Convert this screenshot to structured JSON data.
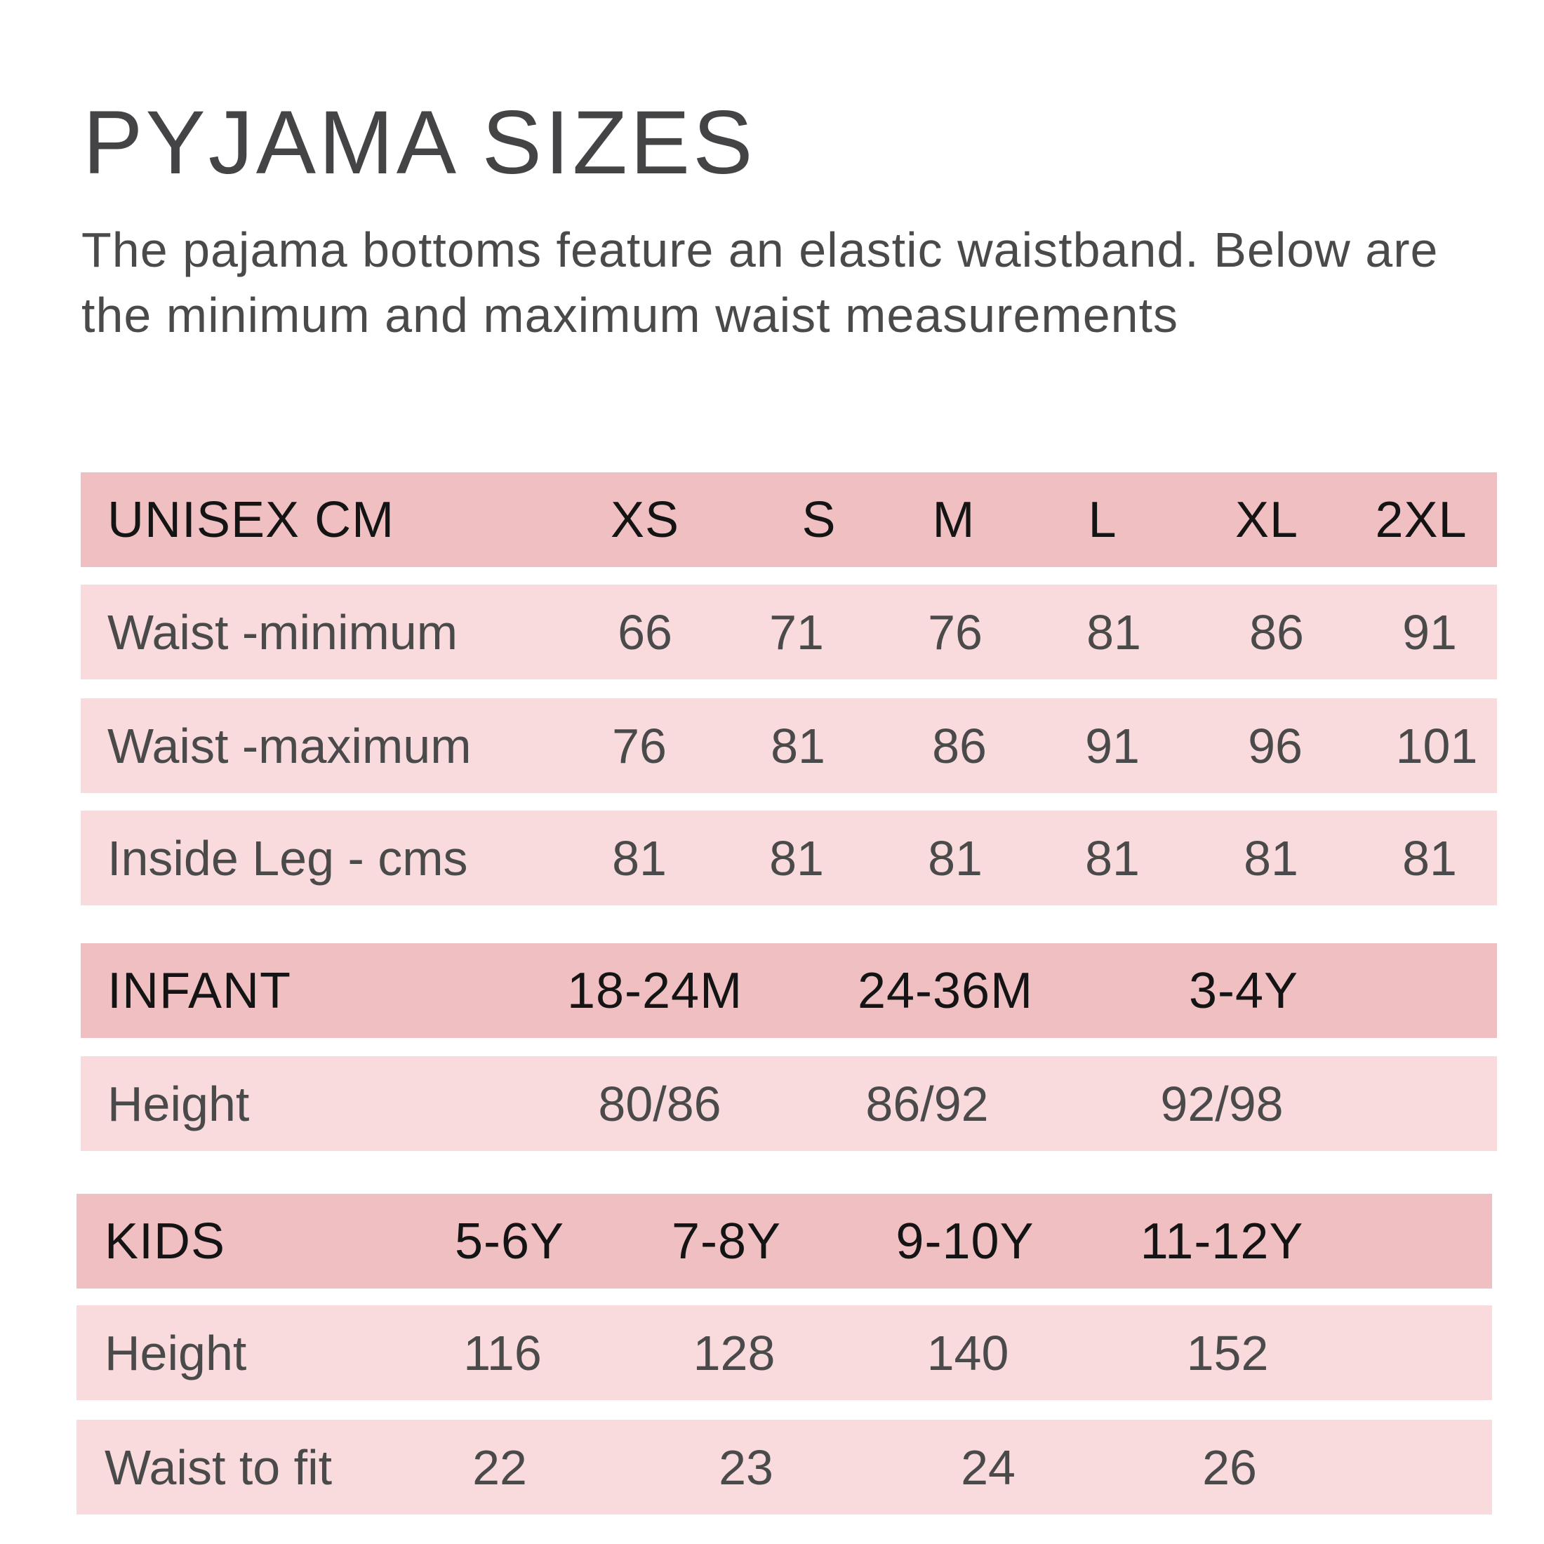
{
  "title": "PYJAMA SIZES",
  "subtitle": "The pajama bottoms feature an elastic waistband. Below are the minimum and maximum waist measurements",
  "colors": {
    "header_bg": "#efbfc2",
    "row_bg": "#f9dadd",
    "header_text": "#141414",
    "row_text": "#4a4a4a"
  },
  "unisex": {
    "header": {
      "label": "UNISEX CM",
      "sizes": [
        "XS",
        "S",
        "M",
        "L",
        "XL",
        "2XL"
      ]
    },
    "rows": [
      {
        "label": "Waist -minimum",
        "values": [
          "66",
          "71",
          "76",
          "81",
          "86",
          "91"
        ]
      },
      {
        "label": "Waist -maximum",
        "values": [
          "76",
          "81",
          "86",
          "91",
          "96",
          "101"
        ]
      },
      {
        "label": "Inside Leg - cms",
        "values": [
          "81",
          "81",
          "81",
          "81",
          "81",
          "81"
        ]
      }
    ]
  },
  "infant": {
    "header": {
      "label": "INFANT",
      "sizes": [
        "18-24M",
        "24-36M",
        "3-4Y"
      ]
    },
    "rows": [
      {
        "label": "Height",
        "values": [
          "80/86",
          "86/92",
          "92/98"
        ]
      }
    ]
  },
  "kids": {
    "header": {
      "label": "KIDS",
      "sizes": [
        "5-6Y",
        "7-8Y",
        "9-10Y",
        "11-12Y"
      ]
    },
    "rows": [
      {
        "label": "Height",
        "values": [
          "116",
          "128",
          "140",
          "152"
        ]
      },
      {
        "label": "Waist to fit",
        "values": [
          "22",
          "23",
          "24",
          "26"
        ]
      }
    ]
  }
}
